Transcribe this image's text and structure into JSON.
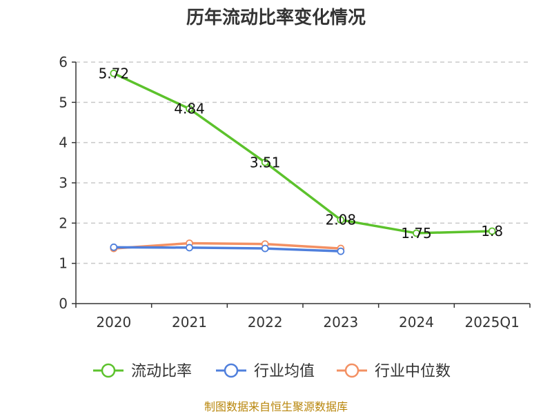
{
  "chart_data": {
    "type": "line",
    "title": "历年流动比率变化情况",
    "categories": [
      "2020",
      "2021",
      "2022",
      "2023",
      "2024",
      "2025Q1"
    ],
    "ylim": [
      0,
      6
    ],
    "yticks": [
      "0",
      "1",
      "2",
      "3",
      "4",
      "5",
      "6"
    ],
    "grid": true,
    "legend_position": "bottom",
    "series": [
      {
        "name": "流动比率",
        "color": "#5cc22c",
        "values": [
          5.72,
          4.84,
          3.51,
          2.08,
          1.75,
          1.8
        ],
        "labels": [
          "5.72",
          "4.84",
          "3.51",
          "2.08",
          "1.75",
          "1.8"
        ]
      },
      {
        "name": "行业均值",
        "color": "#4f7fdc",
        "values": [
          1.4,
          1.39,
          1.37,
          1.3,
          null,
          null
        ]
      },
      {
        "name": "行业中位数",
        "color": "#f39063",
        "values": [
          1.37,
          1.5,
          1.48,
          1.37,
          null,
          null
        ]
      }
    ],
    "source": "制图数据来自恒生聚源数据库"
  }
}
